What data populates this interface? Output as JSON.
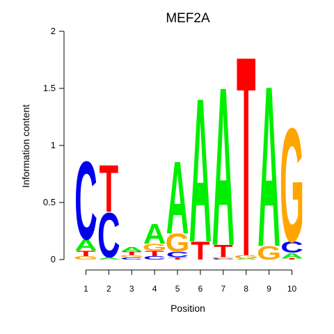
{
  "chart_data": {
    "type": "sequence-logo",
    "title": "MEF2A",
    "xlabel": "Position",
    "ylabel": "Information content",
    "ylim": [
      0,
      2
    ],
    "yticks": [
      0,
      0.5,
      1,
      1.5,
      2
    ],
    "ytick_labels": [
      "0",
      "0.5",
      "1",
      "1.5",
      "2"
    ],
    "positions": [
      "1",
      "2",
      "3",
      "4",
      "5",
      "6",
      "7",
      "8",
      "9",
      "10"
    ],
    "colors": {
      "A": "#00ee00",
      "C": "#0000ee",
      "G": "#ffa500",
      "T": "#ff0000"
    },
    "stacks": [
      [
        {
          "letter": "G",
          "height": 0.03
        },
        {
          "letter": "T",
          "height": 0.05
        },
        {
          "letter": "A",
          "height": 0.1
        },
        {
          "letter": "C",
          "height": 0.7
        }
      ],
      [
        {
          "letter": "A",
          "height": 0.02
        },
        {
          "letter": "C",
          "height": 0.4
        },
        {
          "letter": "T",
          "height": 0.42
        }
      ],
      [
        {
          "letter": "C",
          "height": 0.02
        },
        {
          "letter": "G",
          "height": 0.02
        },
        {
          "letter": "T",
          "height": 0.03
        },
        {
          "letter": "A",
          "height": 0.04
        }
      ],
      [
        {
          "letter": "C",
          "height": 0.03
        },
        {
          "letter": "T",
          "height": 0.05
        },
        {
          "letter": "G",
          "height": 0.06
        },
        {
          "letter": "A",
          "height": 0.18
        }
      ],
      [
        {
          "letter": "T",
          "height": 0.02
        },
        {
          "letter": "C",
          "height": 0.05
        },
        {
          "letter": "G",
          "height": 0.16
        },
        {
          "letter": "A",
          "height": 0.65
        }
      ],
      [
        {
          "letter": "T",
          "height": 0.16
        },
        {
          "letter": "A",
          "height": 1.29
        }
      ],
      [
        {
          "letter": "C",
          "height": 0.01
        },
        {
          "letter": "G",
          "height": 0.01
        },
        {
          "letter": "T",
          "height": 0.11
        },
        {
          "letter": "A",
          "height": 1.42
        }
      ],
      [
        {
          "letter": "A",
          "height": 0.01
        },
        {
          "letter": "G",
          "height": 0.03
        },
        {
          "letter": "T",
          "height": 1.79
        }
      ],
      [
        {
          "letter": "G",
          "height": 0.12
        },
        {
          "letter": "A",
          "height": 1.44
        }
      ],
      [
        {
          "letter": "T",
          "height": 0.01
        },
        {
          "letter": "A",
          "height": 0.05
        },
        {
          "letter": "C",
          "height": 0.1
        },
        {
          "letter": "G",
          "height": 1.02
        }
      ]
    ]
  }
}
